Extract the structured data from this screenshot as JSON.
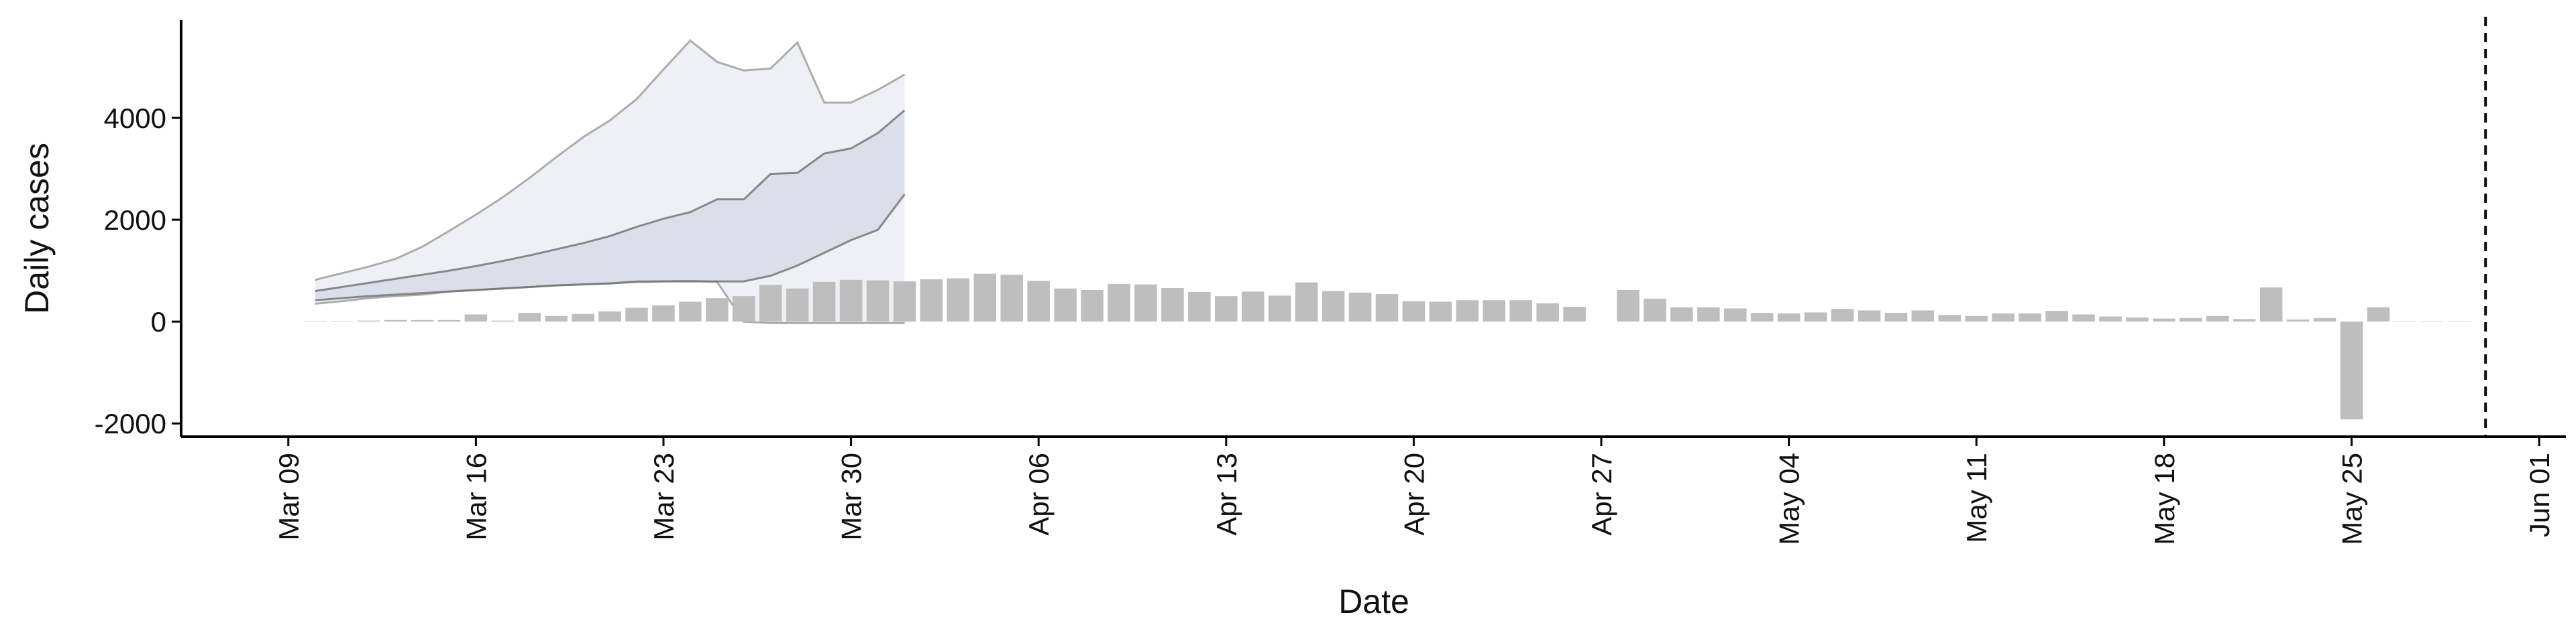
{
  "chart_data": {
    "type": "bar",
    "x_label": "Date",
    "y_label": "Daily cases",
    "x": [
      "Mar 10",
      "Mar 11",
      "Mar 12",
      "Mar 13",
      "Mar 14",
      "Mar 15",
      "Mar 16",
      "Mar 17",
      "Mar 18",
      "Mar 19",
      "Mar 20",
      "Mar 21",
      "Mar 22",
      "Mar 23",
      "Mar 24",
      "Mar 25",
      "Mar 26",
      "Mar 27",
      "Mar 28",
      "Mar 29",
      "Mar 30",
      "Mar 31",
      "Apr 01",
      "Apr 02",
      "Apr 03",
      "Apr 04",
      "Apr 05",
      "Apr 06",
      "Apr 07",
      "Apr 08",
      "Apr 09",
      "Apr 10",
      "Apr 11",
      "Apr 12",
      "Apr 13",
      "Apr 14",
      "Apr 15",
      "Apr 16",
      "Apr 17",
      "Apr 18",
      "Apr 19",
      "Apr 20",
      "Apr 21",
      "Apr 22",
      "Apr 23",
      "Apr 24",
      "Apr 25",
      "Apr 26",
      "Apr 27",
      "Apr 28",
      "Apr 29",
      "Apr 30",
      "May 01",
      "May 02",
      "May 03",
      "May 04",
      "May 05",
      "May 06",
      "May 07",
      "May 08",
      "May 09",
      "May 10",
      "May 11",
      "May 12",
      "May 13",
      "May 14",
      "May 15",
      "May 16",
      "May 17",
      "May 18",
      "May 19",
      "May 20",
      "May 21",
      "May 22",
      "May 23",
      "May 24",
      "May 25",
      "May 26",
      "May 27",
      "May 28",
      "May 29"
    ],
    "values": [
      10,
      10,
      20,
      30,
      30,
      30,
      140,
      20,
      170,
      110,
      150,
      200,
      270,
      320,
      390,
      460,
      500,
      720,
      650,
      780,
      820,
      810,
      790,
      830,
      850,
      940,
      920,
      800,
      650,
      620,
      740,
      730,
      660,
      580,
      500,
      590,
      510,
      770,
      600,
      570,
      540,
      400,
      390,
      420,
      420,
      420,
      360,
      290,
      0,
      620,
      450,
      280,
      280,
      260,
      170,
      160,
      180,
      250,
      220,
      170,
      220,
      130,
      110,
      160,
      160,
      210,
      140,
      100,
      80,
      60,
      70,
      110,
      50,
      670,
      40,
      70,
      -1920,
      280,
      10,
      10,
      10
    ],
    "color": "#bebebe",
    "bands": [
      {
        "x": [
          "Mar 10",
          "Mar 11",
          "Mar 12",
          "Mar 13",
          "Mar 14",
          "Mar 15",
          "Mar 16",
          "Mar 17",
          "Mar 18",
          "Mar 19",
          "Mar 20",
          "Mar 21",
          "Mar 22",
          "Mar 23",
          "Mar 24",
          "Mar 25",
          "Mar 26",
          "Mar 27",
          "Mar 28",
          "Mar 29",
          "Mar 30",
          "Mar 31",
          "Apr 01"
        ],
        "upper": [
          820,
          950,
          1080,
          1230,
          1470,
          1780,
          2100,
          2440,
          2820,
          3230,
          3620,
          3950,
          4370,
          4950,
          5520,
          5100,
          4930,
          4970,
          5480,
          4300,
          4300,
          4550,
          4850
        ],
        "lower": [
          350,
          400,
          460,
          500,
          530,
          590,
          620,
          650,
          680,
          710,
          730,
          750,
          790,
          790,
          800,
          780,
          0,
          -30,
          -30,
          -30,
          -30,
          -30,
          -30
        ],
        "color": "#eceef4",
        "line_color": "#9a9a9a"
      },
      {
        "x": [
          "Mar 10",
          "Mar 11",
          "Mar 12",
          "Mar 13",
          "Mar 14",
          "Mar 15",
          "Mar 16",
          "Mar 17",
          "Mar 18",
          "Mar 19",
          "Mar 20",
          "Mar 21",
          "Mar 22",
          "Mar 23",
          "Mar 24",
          "Mar 25",
          "Mar 26",
          "Mar 27",
          "Mar 28",
          "Mar 29",
          "Mar 30",
          "Mar 31",
          "Apr 01"
        ],
        "upper": [
          600,
          680,
          760,
          840,
          920,
          1000,
          1090,
          1190,
          1300,
          1420,
          1540,
          1680,
          1860,
          2020,
          2150,
          2400,
          2400,
          2900,
          2920,
          3300,
          3400,
          3700,
          4150
        ],
        "lower": [
          420,
          460,
          500,
          530,
          560,
          590,
          620,
          650,
          680,
          710,
          730,
          750,
          780,
          790,
          790,
          790,
          790,
          900,
          1100,
          1350,
          1600,
          1800,
          2500
        ],
        "color": "#d9dde8",
        "line_color": "#6f6f6f"
      }
    ],
    "vline": "May 30",
    "xlim": [
      "Mar 05",
      "Jun 02"
    ],
    "xticks": [
      "Mar 09",
      "Mar 16",
      "Mar 23",
      "Mar 30",
      "Apr 06",
      "Apr 13",
      "Apr 20",
      "Apr 27",
      "May 04",
      "May 11",
      "May 18",
      "May 25",
      "Jun 01"
    ],
    "ylim": [
      -2260,
      5920
    ],
    "yticks": [
      -2000,
      0,
      2000,
      4000
    ],
    "grid": false
  }
}
